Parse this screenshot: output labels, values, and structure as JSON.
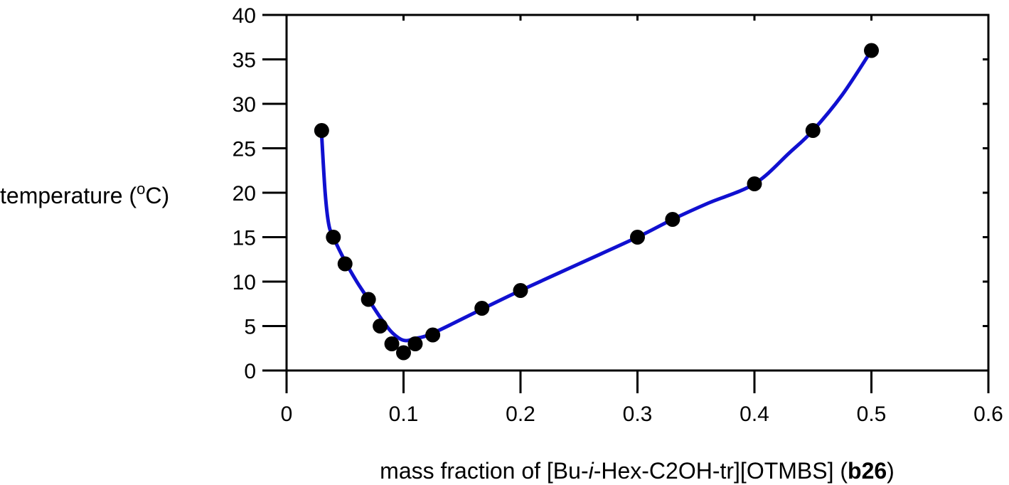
{
  "chart_data": {
    "type": "scatter",
    "title": "",
    "xlabel_parts": {
      "prefix": "mass fraction of [Bu-",
      "italic": "i",
      "middle": "-Hex-C2OH-tr][OTMBS] (",
      "bold": "b26",
      "suffix": ")"
    },
    "ylabel_parts": {
      "prefix": "temperature (",
      "superscript": "o",
      "suffix": "C)"
    },
    "xlim": [
      0,
      0.6
    ],
    "ylim": [
      0,
      40
    ],
    "x_ticks": [
      0,
      0.1,
      0.2,
      0.3,
      0.4,
      0.5,
      0.6
    ],
    "x_tick_labels": [
      "0",
      "0.1",
      "0.2",
      "0.3",
      "0.4",
      "0.5",
      "0.6"
    ],
    "y_ticks": [
      0,
      5,
      10,
      15,
      20,
      25,
      30,
      35,
      40
    ],
    "y_tick_labels": [
      "0",
      "5",
      "10",
      "15",
      "20",
      "25",
      "30",
      "35",
      "40"
    ],
    "grid": false,
    "legend": "none",
    "series": [
      {
        "kind": "points",
        "color": "#000000",
        "x": [
          0.03,
          0.04,
          0.05,
          0.07,
          0.08,
          0.09,
          0.1,
          0.11,
          0.125,
          0.167,
          0.2,
          0.3,
          0.33,
          0.4,
          0.45,
          0.5
        ],
        "y": [
          27,
          15,
          12,
          8,
          5,
          3,
          2,
          3,
          4,
          7,
          9,
          15,
          17,
          21,
          27,
          36
        ]
      },
      {
        "kind": "fit-curve",
        "color": "#1010d0",
        "x": [
          0.03,
          0.033,
          0.036,
          0.04,
          0.05,
          0.06,
          0.07,
          0.08,
          0.09,
          0.1,
          0.11,
          0.125,
          0.167,
          0.2,
          0.25,
          0.3,
          0.33,
          0.36,
          0.4,
          0.43,
          0.45,
          0.475,
          0.5
        ],
        "y": [
          26.5,
          20,
          16.5,
          15,
          12.3,
          10,
          8,
          6,
          4.3,
          3.4,
          3.6,
          4.2,
          6.9,
          9,
          12,
          15,
          17,
          18.8,
          21,
          24.5,
          27,
          31,
          36
        ]
      }
    ]
  }
}
